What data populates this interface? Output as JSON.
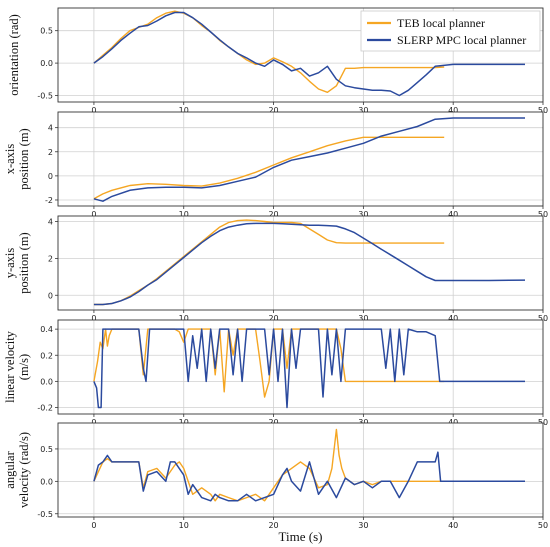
{
  "chart_data": {
    "type": "line",
    "shared_xlabel": "Time (s)",
    "legend": {
      "placement": "top-right",
      "entries": [
        {
          "name": "TEB local planner",
          "color": "#F5A623"
        },
        {
          "name": "SLERP MPC local planner",
          "color": "#2B4A9E"
        }
      ]
    },
    "grid": true,
    "xlim": [
      -4,
      50
    ],
    "xticks": [
      0,
      10,
      20,
      30,
      40,
      50
    ],
    "panels": [
      {
        "ylabel": [
          "orientation (rad)"
        ],
        "ylim": [
          -0.6,
          0.85
        ],
        "yticks": [
          -0.5,
          0.0,
          0.5
        ],
        "ytick_labels": [
          "-0.5",
          "0.0",
          "0.5"
        ],
        "series": [
          {
            "name": "TEB local planner",
            "color": "#F5A623",
            "x": [
              0,
              1,
              2,
              3,
              4,
              5,
              6,
              7,
              8,
              9,
              10,
              11,
              12,
              13,
              14,
              15,
              16,
              17,
              18,
              19,
              20,
              21,
              22,
              23,
              24,
              25,
              26,
              27,
              28,
              29,
              30,
              33,
              36,
              38,
              39
            ],
            "y": [
              0,
              0.12,
              0.24,
              0.38,
              0.5,
              0.55,
              0.6,
              0.7,
              0.77,
              0.8,
              0.77,
              0.7,
              0.58,
              0.48,
              0.35,
              0.25,
              0.15,
              0.05,
              -0.02,
              0.0,
              0.08,
              0.02,
              -0.05,
              -0.15,
              -0.28,
              -0.4,
              -0.45,
              -0.35,
              -0.08,
              -0.08,
              -0.07,
              -0.07,
              -0.07,
              -0.07,
              -0.06
            ]
          },
          {
            "name": "SLERP MPC local planner",
            "color": "#2B4A9E",
            "x": [
              0,
              1,
              2,
              3,
              4,
              5,
              6,
              7,
              8,
              9,
              10,
              11,
              12,
              13,
              14,
              15,
              16,
              17,
              18,
              19,
              20,
              21,
              22,
              23,
              24,
              25,
              26,
              27,
              28,
              29,
              30,
              31,
              32,
              33,
              34,
              35,
              36,
              37,
              38,
              40,
              44,
              48
            ],
            "y": [
              0,
              0.1,
              0.22,
              0.35,
              0.46,
              0.56,
              0.58,
              0.65,
              0.73,
              0.78,
              0.78,
              0.7,
              0.6,
              0.48,
              0.36,
              0.25,
              0.15,
              0.08,
              0.0,
              -0.05,
              0.05,
              -0.02,
              -0.12,
              -0.08,
              -0.2,
              -0.15,
              -0.05,
              -0.25,
              -0.35,
              -0.38,
              -0.4,
              -0.42,
              -0.42,
              -0.43,
              -0.5,
              -0.42,
              -0.3,
              -0.18,
              -0.05,
              -0.02,
              -0.02,
              -0.02
            ]
          }
        ]
      },
      {
        "ylabel": [
          "x-axis",
          "position (m)"
        ],
        "ylim": [
          -2.5,
          5.3
        ],
        "yticks": [
          -2,
          0,
          2,
          4
        ],
        "ytick_labels": [
          "-2",
          "0",
          "2",
          "4"
        ],
        "series": [
          {
            "name": "TEB local planner",
            "color": "#F5A623",
            "x": [
              0,
              1,
              2,
              4,
              6,
              8,
              10,
              12,
              14,
              16,
              18,
              20,
              22,
              24,
              26,
              28,
              30,
              32,
              34,
              36,
              38,
              39
            ],
            "y": [
              -1.9,
              -1.5,
              -1.2,
              -0.8,
              -0.65,
              -0.7,
              -0.8,
              -0.85,
              -0.6,
              -0.2,
              0.3,
              0.9,
              1.5,
              2.0,
              2.5,
              2.9,
              3.2,
              3.2,
              3.2,
              3.2,
              3.2,
              3.2
            ]
          },
          {
            "name": "SLERP MPC local planner",
            "color": "#2B4A9E",
            "x": [
              0,
              1,
              2,
              4,
              6,
              8,
              10,
              12,
              14,
              16,
              18,
              20,
              22,
              24,
              26,
              28,
              30,
              32,
              34,
              36,
              38,
              40,
              44,
              48
            ],
            "y": [
              -1.9,
              -2.1,
              -1.7,
              -1.2,
              -1.0,
              -0.95,
              -0.95,
              -1.0,
              -0.8,
              -0.45,
              -0.1,
              0.7,
              1.3,
              1.6,
              1.9,
              2.3,
              2.7,
              3.3,
              3.7,
              4.1,
              4.7,
              4.8,
              4.8,
              4.8
            ]
          }
        ]
      },
      {
        "ylabel": [
          "y-axis",
          "position (m)"
        ],
        "ylim": [
          -0.8,
          4.3
        ],
        "yticks": [
          0,
          2,
          4
        ],
        "ytick_labels": [
          "0",
          "2",
          "4"
        ],
        "series": [
          {
            "name": "TEB local planner",
            "color": "#F5A623",
            "x": [
              0,
              1,
              2,
              3,
              4,
              5,
              6,
              7,
              8,
              9,
              10,
              11,
              12,
              13,
              14,
              15,
              16,
              17,
              18,
              19,
              20,
              21,
              22,
              23,
              24,
              25,
              26,
              27,
              28,
              29,
              30,
              34,
              38,
              39
            ],
            "y": [
              -0.5,
              -0.5,
              -0.45,
              -0.3,
              -0.05,
              0.25,
              0.55,
              0.9,
              1.3,
              1.7,
              2.1,
              2.5,
              2.9,
              3.3,
              3.7,
              3.95,
              4.05,
              4.08,
              4.05,
              4.0,
              3.95,
              3.95,
              3.95,
              3.9,
              3.6,
              3.3,
              3.0,
              2.85,
              2.83,
              2.83,
              2.83,
              2.83,
              2.83,
              2.83
            ]
          },
          {
            "name": "SLERP MPC local planner",
            "color": "#2B4A9E",
            "x": [
              0,
              1,
              2,
              3,
              4,
              5,
              6,
              7,
              8,
              9,
              10,
              11,
              12,
              13,
              14,
              15,
              16,
              17,
              18,
              19,
              20,
              21,
              22,
              23,
              24,
              25,
              26,
              27,
              28,
              29,
              30,
              31,
              32,
              33,
              34,
              35,
              36,
              37,
              38,
              40,
              44,
              48
            ],
            "y": [
              -0.5,
              -0.5,
              -0.45,
              -0.3,
              -0.1,
              0.2,
              0.55,
              0.85,
              1.25,
              1.65,
              2.05,
              2.45,
              2.85,
              3.2,
              3.5,
              3.7,
              3.8,
              3.88,
              3.9,
              3.9,
              3.9,
              3.88,
              3.85,
              3.82,
              3.8,
              3.8,
              3.78,
              3.75,
              3.6,
              3.4,
              3.1,
              2.8,
              2.5,
              2.2,
              1.9,
              1.6,
              1.3,
              1.0,
              0.8,
              0.8,
              0.8,
              0.82
            ]
          }
        ]
      },
      {
        "ylabel": [
          "linear velocity",
          "(m/s)"
        ],
        "ylim": [
          -0.25,
          0.47
        ],
        "yticks": [
          -0.2,
          0.0,
          0.2,
          0.4
        ],
        "ytick_labels": [
          "-0.2",
          "0.0",
          "0.2",
          "0.4"
        ],
        "series": [
          {
            "name": "TEB local planner",
            "color": "#F5A623",
            "x": [
              0,
              0.4,
              0.7,
              1,
              1.3,
              1.5,
              1.7,
              2,
              3,
              5,
              5.5,
              6,
              6.5,
              7,
              9,
              9.5,
              10,
              10.5,
              11,
              13,
              13.5,
              14,
              14.5,
              15,
              15.5,
              16,
              17,
              18,
              18.5,
              19,
              19.5,
              20,
              21,
              21.5,
              22,
              23,
              24,
              26,
              27,
              27.5,
              28,
              29,
              30,
              33,
              36,
              39
            ],
            "y": [
              0,
              0.15,
              0.3,
              0.25,
              0.4,
              0.27,
              0.35,
              0.4,
              0.4,
              0.4,
              0.05,
              0.4,
              0.4,
              0.4,
              0.4,
              0.38,
              0.3,
              0.4,
              0.4,
              0.4,
              0.05,
              0.4,
              -0.08,
              0.4,
              0.2,
              0.4,
              0.4,
              0.4,
              0.15,
              -0.12,
              0.0,
              0.4,
              0.4,
              0.1,
              0.4,
              0.4,
              0.4,
              0.4,
              0.4,
              0.25,
              0.0,
              0.0,
              0.0,
              0.0,
              0.0,
              0.0
            ]
          },
          {
            "name": "SLERP MPC local planner",
            "color": "#2B4A9E",
            "x": [
              0,
              0.3,
              0.5,
              0.8,
              1.0,
              1.2,
              2,
              3,
              4,
              5,
              5.5,
              5.8,
              6.2,
              7,
              8,
              9,
              10,
              10.5,
              11,
              11.5,
              12,
              12.5,
              13,
              13.5,
              14,
              15,
              15.5,
              16,
              16.5,
              17,
              18,
              19,
              19.5,
              20,
              20.5,
              21,
              21.5,
              22,
              22.5,
              23,
              24,
              25,
              25.5,
              26,
              26.5,
              27,
              27.5,
              28,
              29,
              30,
              31,
              32,
              32.5,
              33,
              33.5,
              34,
              34.5,
              35,
              36,
              37,
              38,
              38.5,
              40,
              44,
              48
            ],
            "y": [
              0,
              -0.05,
              -0.2,
              -0.2,
              0.4,
              0.4,
              0.4,
              0.4,
              0.4,
              0.4,
              0.1,
              0.0,
              0.4,
              0.4,
              0.4,
              0.4,
              0.4,
              0.0,
              0.35,
              0.1,
              0.4,
              0.0,
              0.4,
              0.1,
              0.4,
              0.4,
              0.05,
              0.4,
              0.0,
              0.4,
              0.4,
              0.4,
              0.05,
              0.4,
              0.0,
              0.4,
              -0.2,
              0.4,
              0.1,
              0.4,
              0.4,
              0.4,
              -0.12,
              0.4,
              0.05,
              0.4,
              0.0,
              0.4,
              0.4,
              0.4,
              0.4,
              0.4,
              0.1,
              0.4,
              0.0,
              0.4,
              0.05,
              0.4,
              0.38,
              0.38,
              0.35,
              0.0,
              0.0,
              0.0,
              0.0
            ]
          }
        ]
      },
      {
        "ylabel": [
          "angular",
          "velocity (rad/s)"
        ],
        "ylim": [
          -0.55,
          0.9
        ],
        "yticks": [
          -0.5,
          0.0,
          0.5
        ],
        "ytick_labels": [
          "-0.5",
          "0.0",
          "0.5"
        ],
        "series": [
          {
            "name": "TEB local planner",
            "color": "#F5A623",
            "x": [
              0,
              0.5,
              1,
              1.5,
              2,
              3,
              4,
              5,
              5.5,
              6,
              7,
              8,
              9,
              9.5,
              10,
              11,
              12,
              13,
              13.5,
              14,
              15,
              16,
              17,
              18,
              19,
              20,
              21,
              22,
              23,
              24,
              25,
              26,
              26.5,
              27,
              27.3,
              27.6,
              28,
              29,
              30,
              31,
              32,
              33,
              34,
              36,
              39
            ],
            "y": [
              0,
              0.15,
              0.3,
              0.35,
              0.3,
              0.3,
              0.3,
              0.3,
              -0.1,
              0.15,
              0.2,
              0.05,
              0.25,
              0.3,
              0.2,
              -0.2,
              -0.1,
              -0.2,
              -0.3,
              -0.2,
              -0.25,
              -0.3,
              -0.25,
              -0.2,
              -0.3,
              -0.1,
              0.1,
              0.2,
              0.3,
              0.2,
              -0.1,
              -0.05,
              0.2,
              0.8,
              0.4,
              0.2,
              0.05,
              -0.05,
              0.0,
              -0.05,
              0.0,
              0.0,
              0.0,
              0.0,
              0.0
            ]
          },
          {
            "name": "SLERP MPC local planner",
            "color": "#2B4A9E",
            "x": [
              0,
              0.5,
              1,
              1.5,
              2,
              3,
              4,
              5,
              5.5,
              6,
              7,
              8,
              8.5,
              9,
              10,
              10.5,
              11,
              12,
              13,
              13.5,
              14,
              15,
              16,
              17,
              18,
              19,
              20,
              21,
              21.5,
              22,
              23,
              24,
              25,
              26,
              27,
              28,
              29,
              30,
              31,
              32,
              33,
              34,
              35,
              36,
              37,
              38,
              38.3,
              38.6,
              40,
              44,
              48
            ],
            "y": [
              0,
              0.25,
              0.3,
              0.4,
              0.3,
              0.3,
              0.3,
              0.3,
              -0.15,
              0.1,
              0.15,
              0.0,
              0.3,
              0.3,
              0.1,
              -0.2,
              -0.05,
              -0.25,
              -0.3,
              -0.2,
              -0.25,
              -0.3,
              -0.3,
              -0.2,
              -0.3,
              -0.25,
              -0.2,
              0.1,
              0.2,
              0.0,
              -0.15,
              0.3,
              -0.2,
              0.0,
              -0.25,
              0.05,
              -0.05,
              0.0,
              -0.1,
              0.0,
              0.0,
              -0.25,
              0.0,
              0.3,
              0.3,
              0.3,
              0.45,
              0.0,
              0.0,
              0.0,
              0.0
            ]
          }
        ]
      }
    ]
  }
}
